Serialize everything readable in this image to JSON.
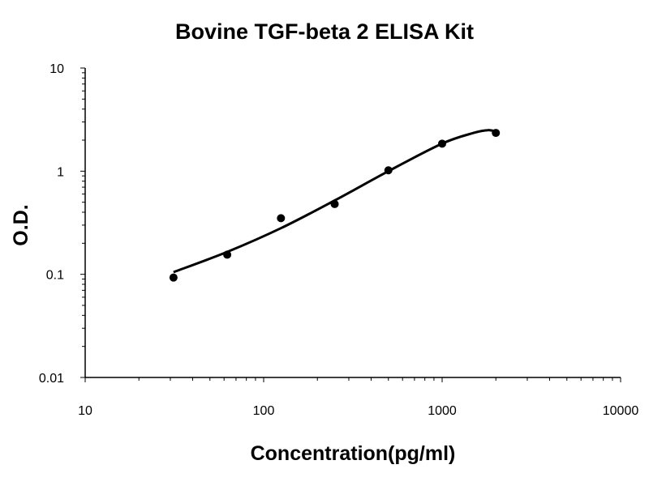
{
  "chart_data": {
    "type": "scatter",
    "title": "Bovine TGF-beta 2 ELISA Kit",
    "xlabel": "Concentration(pg/ml)",
    "ylabel": "O.D.",
    "xscale": "log",
    "yscale": "log",
    "xlim": [
      10,
      10000
    ],
    "ylim": [
      0.01,
      10
    ],
    "x_ticks": [
      "10",
      "100",
      "1000",
      "10000"
    ],
    "y_ticks": [
      "0.01",
      "0.1",
      "1",
      "10"
    ],
    "grid": false,
    "legend": "none",
    "series": [
      {
        "points": [
          {
            "x": 31.25,
            "y": 0.093
          },
          {
            "x": 62.5,
            "y": 0.155
          },
          {
            "x": 125,
            "y": 0.35
          },
          {
            "x": 250,
            "y": 0.48
          },
          {
            "x": 500,
            "y": 1.02
          },
          {
            "x": 1000,
            "y": 1.85
          },
          {
            "x": 2000,
            "y": 2.35
          }
        ],
        "fit_curve": [
          {
            "x": 31.25,
            "y": 0.105
          },
          {
            "x": 62.5,
            "y": 0.165
          },
          {
            "x": 125,
            "y": 0.28
          },
          {
            "x": 250,
            "y": 0.52
          },
          {
            "x": 500,
            "y": 1.0
          },
          {
            "x": 1000,
            "y": 1.85
          },
          {
            "x": 1500,
            "y": 2.35
          },
          {
            "x": 1800,
            "y": 2.5
          },
          {
            "x": 2000,
            "y": 2.42
          }
        ],
        "color": "#000000"
      }
    ]
  }
}
